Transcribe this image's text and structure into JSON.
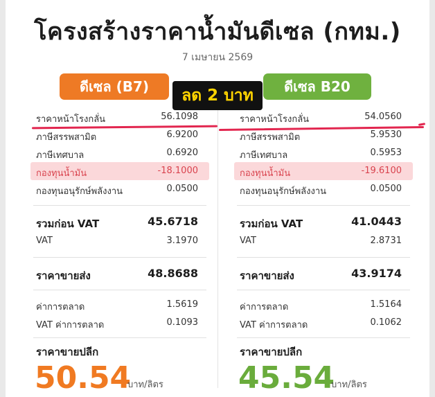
{
  "header": {
    "title": "โครงสร้างราคาน้ำมันดีเซล (กทม.)",
    "date": "7 เมษายน 2569"
  },
  "badge": {
    "text": "ลด 2 บาท"
  },
  "b7": {
    "name": "ดีเซล (B7)",
    "rows": [
      {
        "label": "ราคาหน้าโรงกลั่น",
        "value": "56.1098"
      },
      {
        "label": "ภาษีสรรพสามิต",
        "value": "6.9200"
      },
      {
        "label": "ภาษีเทศบาล",
        "value": "0.6920"
      },
      {
        "label": "กองทุนน้ำมัน",
        "value": "-18.1000"
      },
      {
        "label": "กองทุนอนุรักษ์พลังงาน",
        "value": "0.0500"
      }
    ],
    "pre_vat": {
      "label": "รวมก่อน VAT",
      "value": "45.6718"
    },
    "vat": {
      "label": "VAT",
      "value": "3.1970"
    },
    "wholesale": {
      "label": "ราคาขายส่ง",
      "value": "48.8688"
    },
    "margin": {
      "label": "ค่าการตลาด",
      "value": "1.5619"
    },
    "margin_vat": {
      "label": "VAT ค่าการตลาด",
      "value": "0.1093"
    },
    "retail": {
      "label": "ราคาขายปลีก",
      "value": "50.54",
      "unit": "บาท/ลิตร"
    }
  },
  "b20": {
    "name": "ดีเซล B20",
    "rows": [
      {
        "label": "ราคาหน้าโรงกลั่น",
        "value": "54.0560"
      },
      {
        "label": "ภาษีสรรพสามิต",
        "value": "5.9530"
      },
      {
        "label": "ภาษีเทศบาล",
        "value": "0.5953"
      },
      {
        "label": "กองทุนน้ำมัน",
        "value": "-19.6100"
      },
      {
        "label": "กองทุนอนุรักษ์พลังงาน",
        "value": "0.0500"
      }
    ],
    "pre_vat": {
      "label": "รวมก่อน VAT",
      "value": "41.0443"
    },
    "vat": {
      "label": "VAT",
      "value": "2.8731"
    },
    "wholesale": {
      "label": "ราคาขายส่ง",
      "value": "43.9174"
    },
    "margin": {
      "label": "ค่าการตลาด",
      "value": "1.5164"
    },
    "margin_vat": {
      "label": "VAT ค่าการตลาด",
      "value": "0.1062"
    },
    "retail": {
      "label": "ราคาขายปลีก",
      "value": "45.54",
      "unit": "บาท/ลิตร"
    }
  },
  "colors": {
    "b7_accent": "#f07a22",
    "b20_accent": "#6aac3c",
    "fund_highlight": "#fbd8da",
    "badge_bg": "#111111",
    "badge_text": "#ffd400",
    "annotation_line": "#e2264f"
  }
}
